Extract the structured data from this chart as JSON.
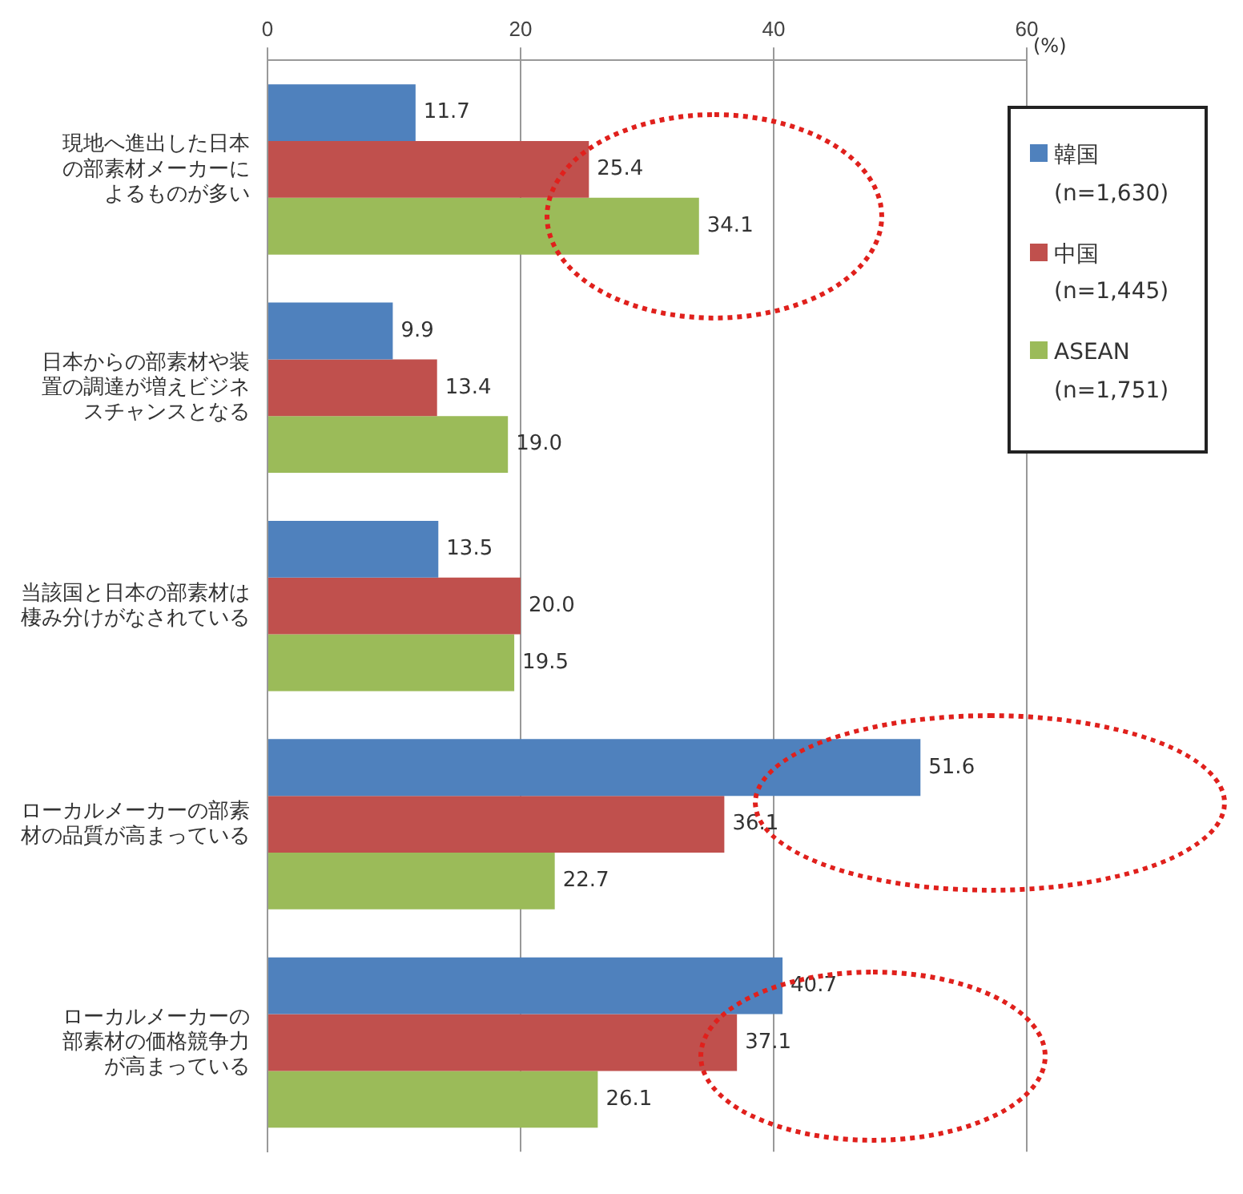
{
  "chart_data": {
    "type": "bar",
    "orientation": "horizontal",
    "xlabel": "(%)",
    "categories": [
      "現地へ進出した日本の部素材メーカーによるものが多い",
      "日本からの部素材や装置の調達が増えビジネスチャンスとなる",
      "当該国と日本の部素材は棲み分けがなされている",
      "ローカルメーカーの部素材の品質が高まっている",
      "ローカルメーカーの部素材の価格競争力が高まっている"
    ],
    "series": [
      {
        "name": "韓国\n(n=1,630)",
        "color": "#4f81bd",
        "values": [
          11.7,
          9.9,
          13.5,
          51.6,
          40.7
        ],
        "value_labels": [
          "11.7",
          "9.9",
          "13.5",
          "51.6",
          "40.7"
        ]
      },
      {
        "name": "中国\n(n=1,445)",
        "color": "#c0504d",
        "values": [
          25.4,
          13.4,
          20.0,
          36.1,
          37.1
        ],
        "value_labels": [
          "25.4",
          "13.4",
          "20.0",
          "36.1",
          "37.1"
        ]
      },
      {
        "name": "ASEAN\n(n=1,751)",
        "color": "#9bbb59",
        "values": [
          34.1,
          19.0,
          19.5,
          22.7,
          26.1
        ],
        "value_labels": [
          "34.1",
          "19.0",
          "19.5",
          "22.7",
          "26.1"
        ]
      }
    ],
    "xlim": [
      0,
      60
    ],
    "xticks": [
      0,
      20,
      40,
      60
    ],
    "grid": "x",
    "legend": "top right"
  }
}
